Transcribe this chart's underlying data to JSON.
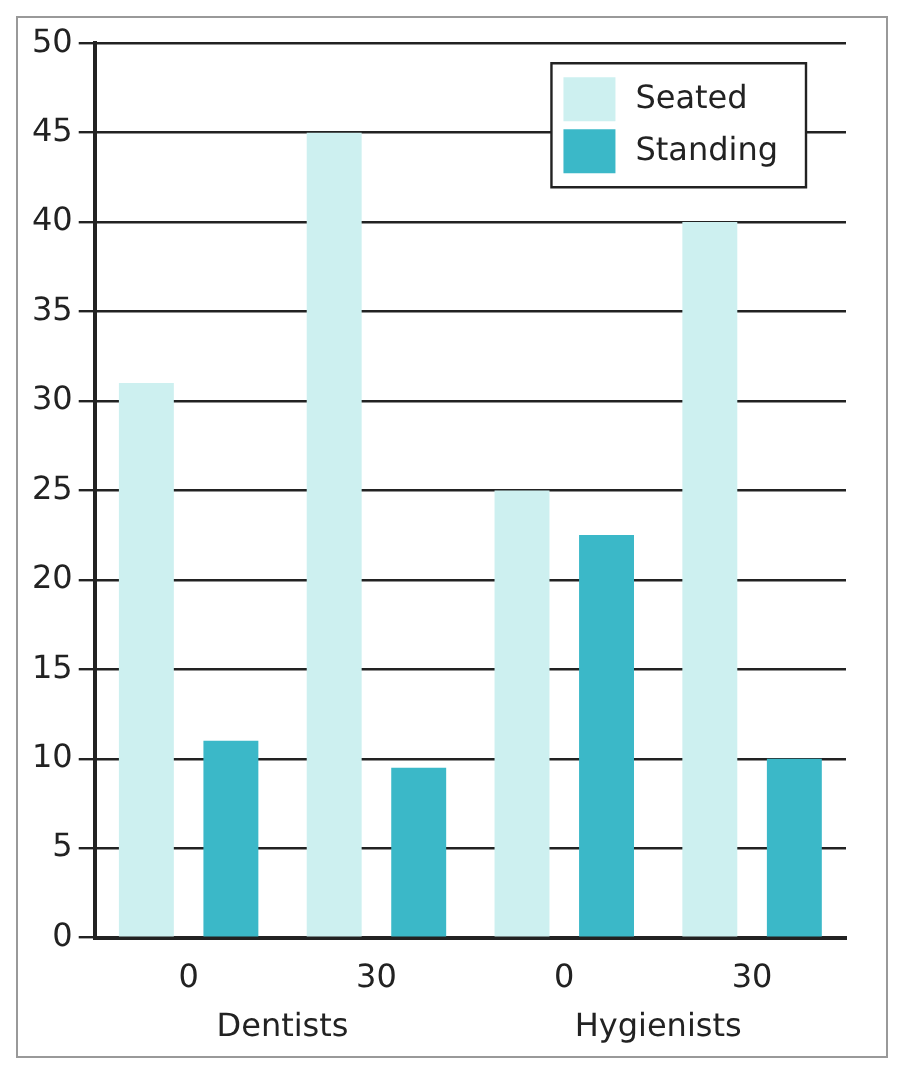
{
  "chart_data": {
    "type": "bar",
    "categories": [
      "0",
      "30",
      "0",
      "30"
    ],
    "series": [
      {
        "name": "Seated",
        "color": "#cdf0f0",
        "values": [
          31,
          45,
          25,
          40
        ]
      },
      {
        "name": "Standing",
        "color": "#3bb8c8",
        "values": [
          11,
          9.5,
          22.5,
          10
        ]
      }
    ],
    "annotations": [
      "Dentists",
      "Hygienists"
    ],
    "ylim": [
      0,
      50
    ],
    "yticks": [
      0,
      5,
      10,
      15,
      20,
      25,
      30,
      35,
      40,
      45,
      50
    ],
    "grid": "y",
    "legend": "top right"
  }
}
